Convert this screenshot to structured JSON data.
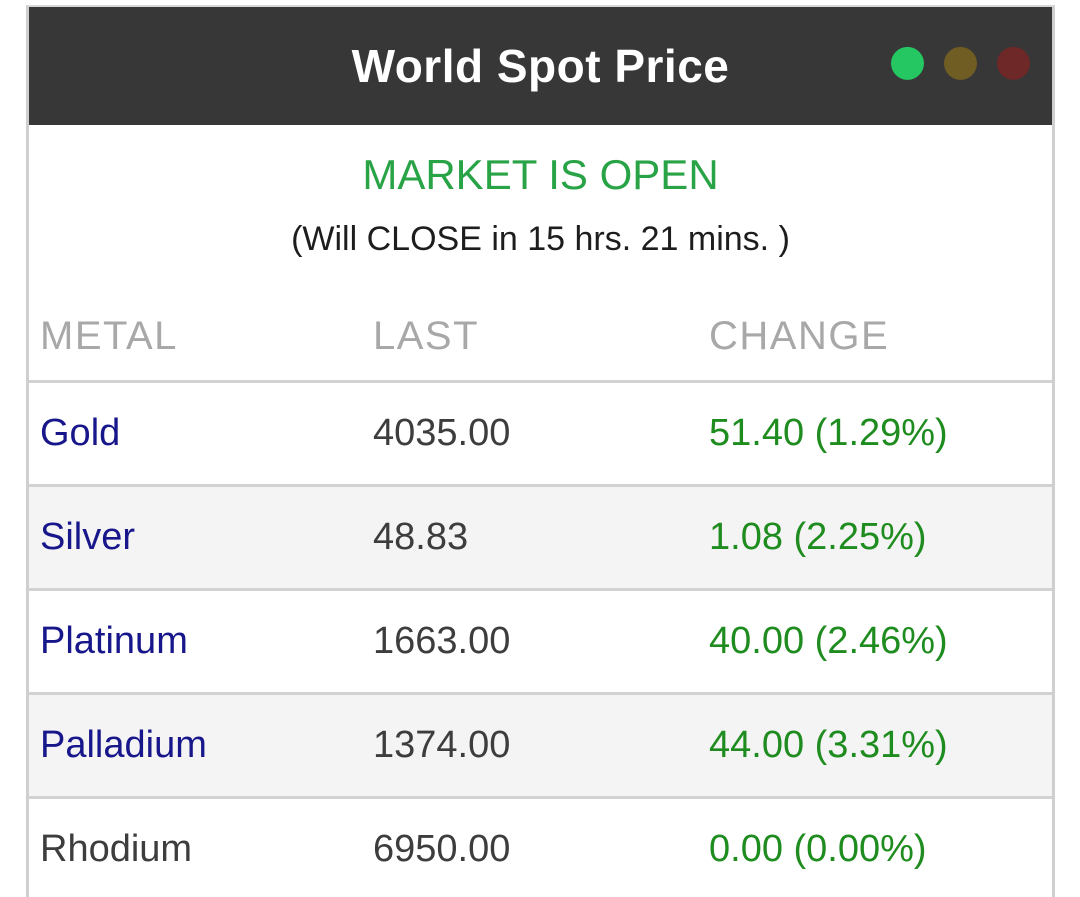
{
  "header": {
    "title": "World Spot Price",
    "lights": [
      {
        "name": "green-light",
        "color": "#25c763"
      },
      {
        "name": "yellow-light",
        "color": "#6f5d23"
      },
      {
        "name": "red-light",
        "color": "#6f2828"
      }
    ]
  },
  "status": {
    "open_text": "MARKET IS OPEN",
    "close_text": "(Will CLOSE in 15 hrs. 21 mins. )"
  },
  "table": {
    "columns": [
      "METAL",
      "LAST",
      "CHANGE"
    ],
    "rows": [
      {
        "metal": "Gold",
        "last": "4035.00",
        "change": "51.40 (1.29%)",
        "link": true
      },
      {
        "metal": "Silver",
        "last": "48.83",
        "change": "1.08 (2.25%)",
        "link": true
      },
      {
        "metal": "Platinum",
        "last": "1663.00",
        "change": "40.00 (2.46%)",
        "link": true
      },
      {
        "metal": "Palladium",
        "last": "1374.00",
        "change": "44.00 (3.31%)",
        "link": true
      },
      {
        "metal": "Rhodium",
        "last": "6950.00",
        "change": "0.00 (0.00%)",
        "link": false
      }
    ]
  },
  "colors": {
    "header_bg": "#373737",
    "status_green": "#28a346",
    "change_green": "#1f8c1f",
    "link_blue": "#17178b",
    "alt_row_bg": "#f4f4f4",
    "border_gray": "#d2d2d2",
    "column_header_gray": "#a8a8a8",
    "value_gray": "#3d3d3d",
    "text_dark": "#1d1d1d"
  }
}
